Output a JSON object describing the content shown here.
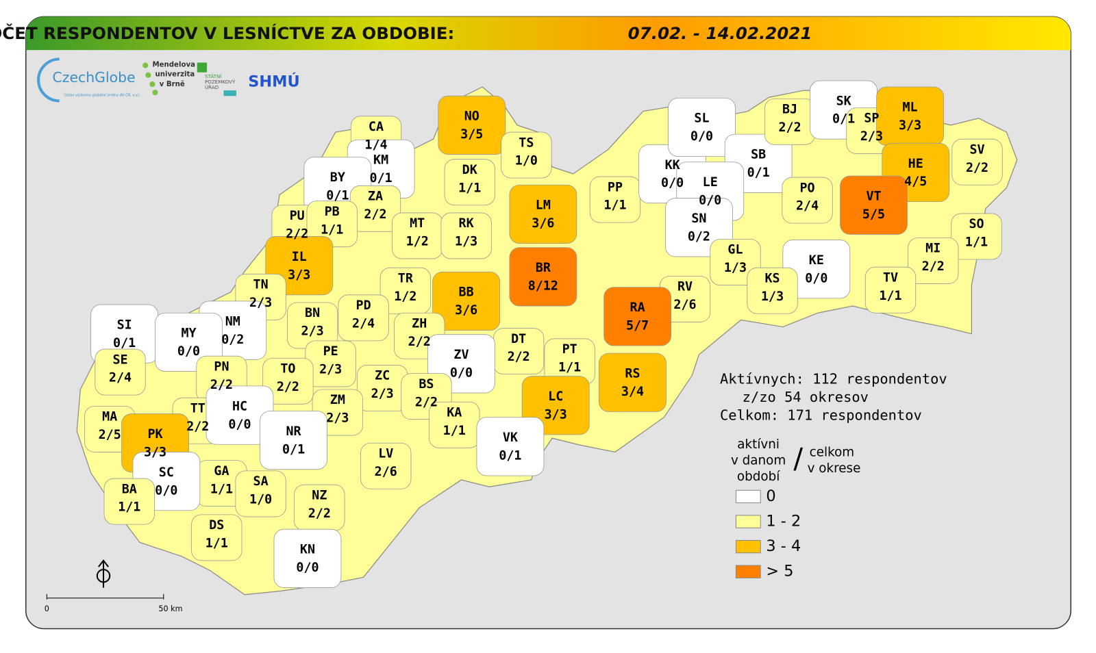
{
  "header": {
    "title": "POČET RESPONDENTOV V LESNÍCTVE ZA OBDOBIE:",
    "date": "07.02. - 14.02.2021"
  },
  "logos": {
    "czechglobe": "CzechGlobe",
    "czechglobe_sub": "Ústav výzkumu globální změny AV ČR, v.v.i.",
    "mendel": [
      "Mendelova",
      "univerzita",
      "v Brně"
    ],
    "spu": [
      "STÁTNÍ",
      "POZEMKOVÝ",
      "ÚŘAD"
    ],
    "shmu": "SHMÚ"
  },
  "districts": [
    {
      "code": "CA",
      "label": "1/4",
      "color": "#ffff99"
    },
    {
      "code": "NO",
      "label": "3/5",
      "color": "#ffc000"
    },
    {
      "code": "TS",
      "label": "1/0",
      "color": "#ffff99"
    },
    {
      "code": "KM",
      "label": "0/1",
      "color": "#ffffff"
    },
    {
      "code": "BY",
      "label": "0/1",
      "color": "#ffffff"
    },
    {
      "code": "DK",
      "label": "1/1",
      "color": "#ffff99"
    },
    {
      "code": "ZA",
      "label": "2/2",
      "color": "#ffff99"
    },
    {
      "code": "LM",
      "label": "3/6",
      "color": "#ffc000"
    },
    {
      "code": "PP",
      "label": "1/1",
      "color": "#ffff99"
    },
    {
      "code": "KK",
      "label": "0/0",
      "color": "#ffffff"
    },
    {
      "code": "SL",
      "label": "0/0",
      "color": "#ffffff"
    },
    {
      "code": "SB",
      "label": "0/1",
      "color": "#ffffff"
    },
    {
      "code": "LE",
      "label": "0/0",
      "color": "#ffffff"
    },
    {
      "code": "BJ",
      "label": "2/2",
      "color": "#ffff99"
    },
    {
      "code": "SK",
      "label": "0/1",
      "color": "#ffffff"
    },
    {
      "code": "SP",
      "label": "2/3",
      "color": "#ffff99"
    },
    {
      "code": "ML",
      "label": "3/3",
      "color": "#ffc000"
    },
    {
      "code": "HE",
      "label": "4/5",
      "color": "#ffc000"
    },
    {
      "code": "SV",
      "label": "2/2",
      "color": "#ffff99"
    },
    {
      "code": "VT",
      "label": "5/5",
      "color": "#ff8000"
    },
    {
      "code": "PO",
      "label": "2/4",
      "color": "#ffff99"
    },
    {
      "code": "SN",
      "label": "0/2",
      "color": "#ffffff"
    },
    {
      "code": "SO",
      "label": "1/1",
      "color": "#ffff99"
    },
    {
      "code": "PU",
      "label": "2/2",
      "color": "#ffff99"
    },
    {
      "code": "PB",
      "label": "1/1",
      "color": "#ffff99"
    },
    {
      "code": "MT",
      "label": "1/2",
      "color": "#ffff99"
    },
    {
      "code": "RK",
      "label": "1/3",
      "color": "#ffff99"
    },
    {
      "code": "IL",
      "label": "3/3",
      "color": "#ffc000"
    },
    {
      "code": "GL",
      "label": "1/3",
      "color": "#ffff99"
    },
    {
      "code": "KE",
      "label": "0/0",
      "color": "#ffffff"
    },
    {
      "code": "MI",
      "label": "2/2",
      "color": "#ffff99"
    },
    {
      "code": "BR",
      "label": "8/12",
      "color": "#ff8000"
    },
    {
      "code": "TR",
      "label": "1/2",
      "color": "#ffff99"
    },
    {
      "code": "BB",
      "label": "3/6",
      "color": "#ffc000"
    },
    {
      "code": "TN",
      "label": "2/3",
      "color": "#ffff99"
    },
    {
      "code": "RV",
      "label": "2/6",
      "color": "#ffff99"
    },
    {
      "code": "KS",
      "label": "1/3",
      "color": "#ffff99"
    },
    {
      "code": "TV",
      "label": "1/1",
      "color": "#ffff99"
    },
    {
      "code": "RA",
      "label": "5/7",
      "color": "#ff8000"
    },
    {
      "code": "BN",
      "label": "2/3",
      "color": "#ffff99"
    },
    {
      "code": "PD",
      "label": "2/4",
      "color": "#ffff99"
    },
    {
      "code": "SI",
      "label": "0/1",
      "color": "#ffffff"
    },
    {
      "code": "NM",
      "label": "0/2",
      "color": "#ffffff"
    },
    {
      "code": "MY",
      "label": "0/0",
      "color": "#ffffff"
    },
    {
      "code": "ZH",
      "label": "2/2",
      "color": "#ffff99"
    },
    {
      "code": "DT",
      "label": "2/2",
      "color": "#ffff99"
    },
    {
      "code": "PT",
      "label": "1/1",
      "color": "#ffff99"
    },
    {
      "code": "PE",
      "label": "2/3",
      "color": "#ffff99"
    },
    {
      "code": "ZV",
      "label": "0/0",
      "color": "#ffffff"
    },
    {
      "code": "SE",
      "label": "2/4",
      "color": "#ffff99"
    },
    {
      "code": "PN",
      "label": "2/2",
      "color": "#ffff99"
    },
    {
      "code": "TO",
      "label": "2/2",
      "color": "#ffff99"
    },
    {
      "code": "ZC",
      "label": "2/3",
      "color": "#ffff99"
    },
    {
      "code": "BS",
      "label": "2/2",
      "color": "#ffff99"
    },
    {
      "code": "RS",
      "label": "3/4",
      "color": "#ffc000"
    },
    {
      "code": "TT",
      "label": "2/2",
      "color": "#ffff99"
    },
    {
      "code": "HC",
      "label": "0/0",
      "color": "#ffffff"
    },
    {
      "code": "MA",
      "label": "2/5",
      "color": "#ffff99"
    },
    {
      "code": "ZM",
      "label": "2/3",
      "color": "#ffff99"
    },
    {
      "code": "LC",
      "label": "3/3",
      "color": "#ffc000"
    },
    {
      "code": "KA",
      "label": "1/1",
      "color": "#ffff99"
    },
    {
      "code": "NR",
      "label": "0/1",
      "color": "#ffffff"
    },
    {
      "code": "PK",
      "label": "3/3",
      "color": "#ffc000"
    },
    {
      "code": "VK",
      "label": "0/1",
      "color": "#ffffff"
    },
    {
      "code": "LV",
      "label": "2/6",
      "color": "#ffff99"
    },
    {
      "code": "GA",
      "label": "1/1",
      "color": "#ffff99"
    },
    {
      "code": "SC",
      "label": "0/0",
      "color": "#ffffff"
    },
    {
      "code": "SA",
      "label": "1/0",
      "color": "#ffff99"
    },
    {
      "code": "BA",
      "label": "1/1",
      "color": "#ffff99"
    },
    {
      "code": "NZ",
      "label": "2/2",
      "color": "#ffff99"
    },
    {
      "code": "DS",
      "label": "1/1",
      "color": "#ffff99"
    },
    {
      "code": "KN",
      "label": "0/0",
      "color": "#ffffff"
    }
  ],
  "stats": [
    "Aktívnych: 112 respondentov",
    "z/zo 54 okresov",
    "Celkom: 171 respondentov"
  ],
  "legend": {
    "left": [
      "aktívni",
      "v danom",
      "období"
    ],
    "slash": "/",
    "right": [
      "celkom",
      "v okrese"
    ],
    "items": [
      {
        "label": "0",
        "color": "#ffffff"
      },
      {
        "label": "1 - 2",
        "color": "#ffff99"
      },
      {
        "label": "3 - 4",
        "color": "#ffc000"
      },
      {
        "label": "> 5",
        "color": "#ff8000"
      }
    ]
  },
  "scale": {
    "start": "0",
    "end": "50 km"
  }
}
